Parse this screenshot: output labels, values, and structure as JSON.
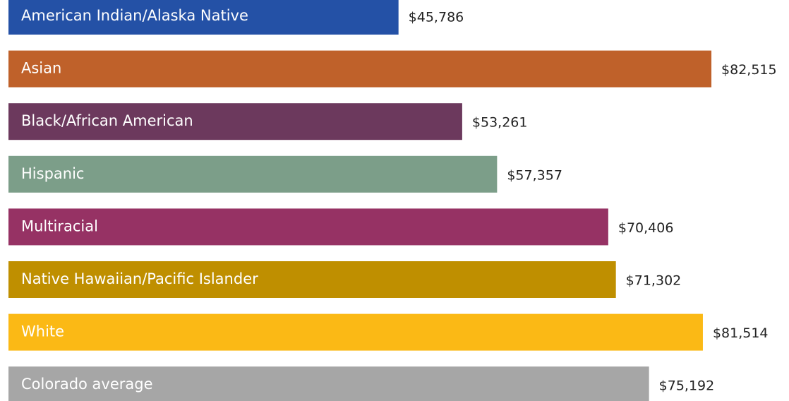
{
  "chart_data": {
    "type": "hbar",
    "categories": [
      "American Indian/Alaska Native",
      "Asian",
      "Black/African American",
      "Hispanic",
      "Multiracial",
      "Native Hawaiian/Pacific Islander",
      "White",
      "Colorado average"
    ],
    "values": [
      45786,
      82515,
      53261,
      57357,
      70406,
      71302,
      81514,
      75192
    ],
    "value_labels": [
      "$45,786",
      "$82,515",
      "$53,261",
      "$57,357",
      "$70,406",
      "$71,302",
      "$81,514",
      "$75,192"
    ],
    "colors": [
      "#2451a6",
      "#bf612a",
      "#6c395d",
      "#7c9e89",
      "#963264",
      "#bf8f00",
      "#fbb915",
      "#a6a6a6"
    ]
  }
}
